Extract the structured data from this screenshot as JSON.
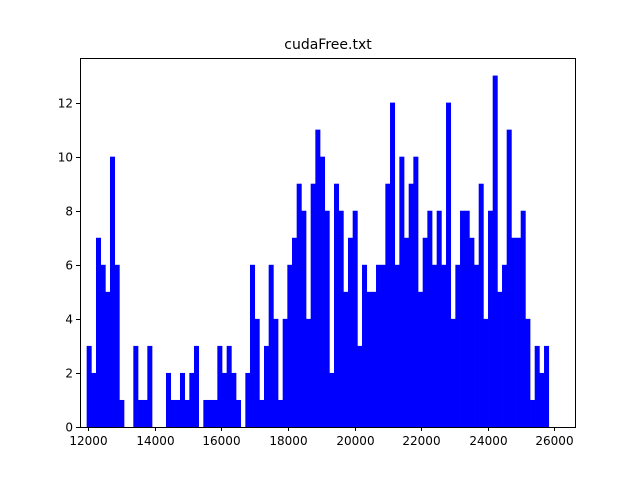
{
  "chart_data": {
    "type": "bar",
    "title": "cudaFree.txt",
    "xlabel": "",
    "ylabel": "",
    "xlim": [
      11750,
      26650
    ],
    "ylim": [
      0,
      13.65
    ],
    "grid": false,
    "legend": "none",
    "bar_color": "#0000ff",
    "bin_start": 11950,
    "bin_width": 140.2,
    "counts": [
      3,
      2,
      7,
      6,
      5,
      10,
      6,
      1,
      0,
      0,
      3,
      1,
      1,
      3,
      0,
      0,
      0,
      2,
      1,
      1,
      2,
      1,
      2,
      3,
      0,
      1,
      1,
      1,
      3,
      2,
      3,
      2,
      1,
      0,
      2,
      6,
      4,
      1,
      3,
      6,
      4,
      1,
      4,
      6,
      7,
      9,
      8,
      4,
      9,
      11,
      10,
      8,
      2,
      9,
      8,
      5,
      7,
      8,
      3,
      6,
      5,
      5,
      6,
      6,
      9,
      12,
      6,
      10,
      7,
      9,
      10,
      5,
      7,
      8,
      6,
      8,
      6,
      12,
      4,
      6,
      8,
      8,
      7,
      6,
      9,
      4,
      8,
      13,
      5,
      6,
      11,
      7,
      7,
      8,
      4,
      1,
      3,
      2,
      3
    ],
    "x_ticks": [
      12000,
      14000,
      16000,
      18000,
      20000,
      22000,
      24000,
      26000
    ],
    "x_tick_labels": [
      "12000",
      "14000",
      "16000",
      "18000",
      "20000",
      "22000",
      "24000",
      "26000"
    ],
    "y_ticks": [
      0,
      2,
      4,
      6,
      8,
      10,
      12
    ],
    "y_tick_labels": [
      "0",
      "2",
      "4",
      "6",
      "8",
      "10",
      "12"
    ]
  }
}
